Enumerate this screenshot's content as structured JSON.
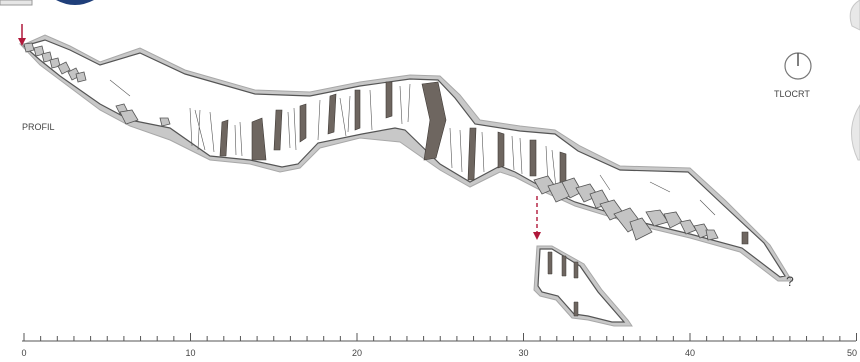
{
  "section_label": "PROFIL",
  "compass_label": "TLOCRT",
  "unknown_marker": "?",
  "scale": {
    "labels": [
      "0",
      "10",
      "20",
      "30",
      "40",
      "50"
    ],
    "major_step": 10,
    "minor_step": 1,
    "max": 50
  },
  "colors": {
    "rock": "#c8c8c8",
    "wall": "#555555",
    "boulder": "#c4c4c4",
    "formation": "#6e6660",
    "arrow": "#b0183a",
    "text": "#444444"
  },
  "icons": {
    "compass": "compass-icon",
    "entrance_arrow": "entrance-arrow-icon",
    "shaft_arrow": "shaft-arrow-icon"
  }
}
